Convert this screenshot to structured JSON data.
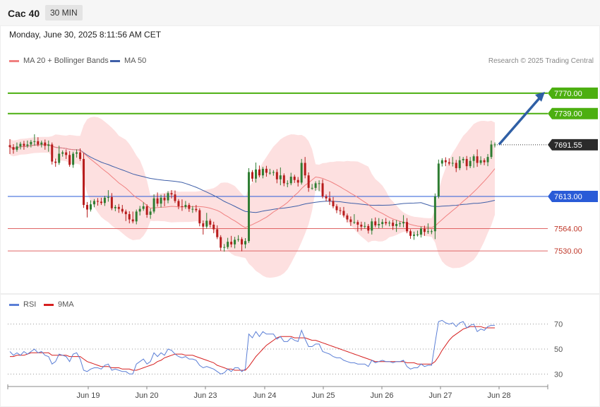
{
  "header": {
    "symbol": "Cac 40",
    "timeframe": "30 MIN"
  },
  "datetime": "Monday, June 30, 2025 8:11:56 AM CET",
  "legend": {
    "ma": "MA 20 + Bollinger Bands",
    "ma50": "MA 50",
    "rsi": "RSI",
    "rsi_ma": "9MA"
  },
  "credit": "Research © 2025 Trading Central",
  "colors": {
    "bull": "#2e7d32",
    "bear": "#b71c1c",
    "bb_fill": "#fde0e0",
    "ma20": "#f08080",
    "ma50": "#3f5fa8",
    "resistance": "#4caf10",
    "support": "#e06666",
    "pivot": "#2a5bd7",
    "last": "#2b2b2b",
    "arrow": "#2f5fa5",
    "rsi": "#5b7fd6",
    "rsi_ma": "#d62020"
  },
  "chart_data": [
    {
      "type": "candlestick",
      "x_labels": [
        "Jun 19",
        "Jun 20",
        "Jun 23",
        "Jun 24",
        "Jun 25",
        "Jun 26",
        "Jun 27",
        "Jun 28"
      ],
      "y_range": [
        7470,
        7800
      ],
      "levels": [
        {
          "value": 7770.0,
          "label": "7770.00",
          "kind": "resistance"
        },
        {
          "value": 7739.0,
          "label": "7739.00",
          "kind": "resistance"
        },
        {
          "value": 7613.0,
          "label": "7613.00",
          "kind": "pivot"
        },
        {
          "value": 7564.0,
          "label": "7564.00",
          "kind": "support"
        },
        {
          "value": 7530.0,
          "label": "7530.00",
          "kind": "support"
        }
      ],
      "last_price": {
        "value": 7691.55,
        "label": "7691.55"
      },
      "target_arrow": {
        "from": 7692,
        "to": 7772
      },
      "closes": [
        7688,
        7684,
        7689,
        7693,
        7690,
        7692,
        7696,
        7697,
        7692,
        7695,
        7690,
        7692,
        7666,
        7664,
        7678,
        7680,
        7676,
        7661,
        7678,
        7680,
        7670,
        7600,
        7593,
        7601,
        7606,
        7605,
        7603,
        7611,
        7612,
        7595,
        7597,
        7594,
        7590,
        7586,
        7578,
        7575,
        7590,
        7594,
        7598,
        7585,
        7590,
        7610,
        7602,
        7611,
        7607,
        7618,
        7616,
        7606,
        7598,
        7597,
        7600,
        7594,
        7594,
        7592,
        7572,
        7567,
        7576,
        7570,
        7563,
        7551,
        7535,
        7536,
        7544,
        7540,
        7547,
        7548,
        7540,
        7545,
        7650,
        7640,
        7654,
        7645,
        7655,
        7649,
        7649,
        7650,
        7639,
        7645,
        7633,
        7633,
        7643,
        7638,
        7634,
        7664,
        7645,
        7626,
        7626,
        7633,
        7633,
        7613,
        7610,
        7606,
        7598,
        7592,
        7591,
        7584,
        7578,
        7574,
        7574,
        7570,
        7567,
        7568,
        7561,
        7575,
        7569,
        7571,
        7574,
        7572,
        7573,
        7568,
        7571,
        7572,
        7574,
        7560,
        7553,
        7555,
        7555,
        7564,
        7559,
        7560,
        7560,
        7613,
        7663,
        7668,
        7665,
        7663,
        7664,
        7656,
        7668,
        7670,
        7659,
        7667,
        7674,
        7664,
        7668,
        7665,
        7673,
        7692,
        7692
      ],
      "rsi_range": [
        20,
        80
      ],
      "rsi_levels": [
        70,
        50,
        30
      ],
      "rsi": [
        48,
        45,
        47,
        45,
        48,
        46,
        48,
        50,
        47,
        48,
        45,
        44,
        38,
        40,
        46,
        45,
        44,
        40,
        46,
        47,
        42,
        33,
        32,
        34,
        35,
        35,
        34,
        37,
        38,
        33,
        34,
        33,
        32,
        32,
        30,
        30,
        38,
        40,
        42,
        38,
        40,
        47,
        44,
        47,
        45,
        50,
        49,
        46,
        44,
        43,
        44,
        42,
        42,
        41,
        37,
        35,
        36,
        35,
        34,
        32,
        30,
        31,
        34,
        32,
        35,
        35,
        32,
        34,
        62,
        59,
        64,
        60,
        64,
        62,
        62,
        62,
        58,
        60,
        56,
        56,
        59,
        57,
        56,
        65,
        58,
        52,
        52,
        54,
        54,
        48,
        47,
        46,
        44,
        43,
        43,
        41,
        40,
        39,
        39,
        38,
        38,
        38,
        36,
        41,
        39,
        40,
        41,
        40,
        40,
        39,
        40,
        40,
        41,
        36,
        34,
        35,
        35,
        38,
        36,
        37,
        37,
        55,
        72,
        73,
        71,
        70,
        71,
        68,
        71,
        72,
        67,
        69,
        70,
        64,
        66,
        65,
        68,
        69,
        69
      ],
      "rsi_ma": [
        44,
        44,
        45,
        45,
        45,
        46,
        47,
        47,
        47,
        47,
        47,
        47,
        45,
        45,
        45,
        45,
        45,
        44,
        44,
        44,
        44,
        42,
        40,
        39,
        38,
        37,
        36,
        36,
        36,
        35,
        35,
        35,
        34,
        34,
        34,
        33,
        33,
        34,
        35,
        36,
        37,
        38,
        40,
        41,
        43,
        44,
        45,
        46,
        46,
        46,
        45,
        45,
        45,
        44,
        43,
        42,
        41,
        40,
        39,
        37,
        36,
        35,
        34,
        34,
        33,
        33,
        33,
        33,
        36,
        40,
        44,
        47,
        50,
        53,
        55,
        57,
        59,
        60,
        60,
        60,
        60,
        59,
        59,
        59,
        59,
        58,
        57,
        57,
        56,
        55,
        54,
        53,
        52,
        51,
        50,
        49,
        48,
        47,
        46,
        45,
        44,
        43,
        42,
        41,
        40,
        40,
        40,
        40,
        40,
        40,
        40,
        40,
        40,
        39,
        39,
        39,
        38,
        38,
        38,
        38,
        38,
        40,
        44,
        49,
        53,
        57,
        60,
        62,
        64,
        66,
        67,
        68,
        68,
        68,
        68,
        67,
        67,
        67,
        67
      ]
    }
  ]
}
